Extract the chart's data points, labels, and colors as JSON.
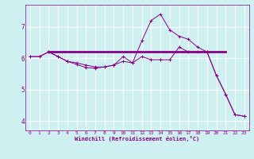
{
  "title": "",
  "xlabel": "Windchill (Refroidissement éolien,°C)",
  "ylabel": "",
  "background_color": "#cff0f0",
  "grid_color": "#ffffff",
  "line_color": "#880088",
  "xlim": [
    -0.5,
    23.5
  ],
  "ylim": [
    3.7,
    7.7
  ],
  "yticks": [
    4,
    5,
    6,
    7
  ],
  "xticks": [
    0,
    1,
    2,
    3,
    4,
    5,
    6,
    7,
    8,
    9,
    10,
    11,
    12,
    13,
    14,
    15,
    16,
    17,
    18,
    19,
    20,
    21,
    22,
    23
  ],
  "series": {
    "line1_x": [
      0,
      1,
      2,
      3,
      4,
      5,
      6,
      7,
      8,
      9,
      10,
      11,
      12,
      13,
      14,
      15,
      16,
      17,
      18,
      19,
      20,
      21,
      22,
      23
    ],
    "line1_y": [
      6.05,
      6.05,
      6.2,
      6.05,
      5.9,
      5.8,
      5.7,
      5.68,
      5.72,
      5.78,
      6.05,
      5.85,
      6.55,
      7.2,
      7.4,
      6.9,
      6.7,
      6.6,
      6.35,
      6.2,
      5.45,
      4.85,
      4.2,
      4.15
    ],
    "line2_x": [
      2,
      21
    ],
    "line2_y": [
      6.2,
      6.2
    ],
    "line3_x": [
      0,
      1,
      2,
      3,
      4,
      5,
      6,
      7,
      8,
      9,
      10,
      11,
      12,
      13,
      14,
      15,
      16,
      17,
      18,
      19,
      20,
      21,
      22,
      23
    ],
    "line3_y": [
      6.05,
      6.05,
      6.2,
      6.05,
      5.9,
      5.85,
      5.78,
      5.72,
      5.72,
      5.78,
      5.9,
      5.85,
      6.05,
      5.95,
      5.95,
      5.95,
      6.35,
      6.2,
      6.2,
      6.2,
      5.45,
      4.85,
      4.2,
      4.15
    ]
  }
}
